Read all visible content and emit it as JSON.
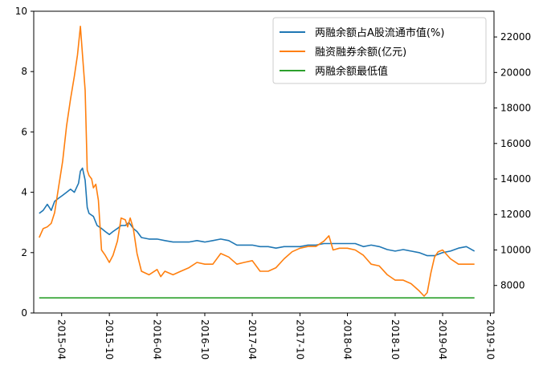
{
  "chart_data": {
    "type": "line",
    "title": "",
    "xlabel": "",
    "ylabel_left": "",
    "ylabel_right": "",
    "x_ticks": [
      "2015-04",
      "2015-10",
      "2016-04",
      "2016-10",
      "2017-04",
      "2017-10",
      "2018-04",
      "2018-10",
      "2019-04",
      "2019-10"
    ],
    "y_left_ticks": [
      "0",
      "2",
      "4",
      "6",
      "8",
      "10"
    ],
    "y_right_ticks": [
      "8000",
      "10000",
      "12000",
      "14000",
      "16000",
      "18000",
      "20000",
      "22000"
    ],
    "ylim_left": [
      0,
      10
    ],
    "ylim_right": [
      6450,
      23450
    ],
    "xlim": [
      "2014-12-15",
      "2019-10-15"
    ],
    "grid": false,
    "legend_position": "upper right",
    "series": [
      {
        "name": "两融余额占A股流通市值(%)",
        "axis": "left",
        "color": "#1f77b4",
        "x": [
          "2015-01-05",
          "2015-01-20",
          "2015-02-05",
          "2015-02-20",
          "2015-03-05",
          "2015-03-20",
          "2015-04-05",
          "2015-04-20",
          "2015-05-05",
          "2015-05-20",
          "2015-06-05",
          "2015-06-12",
          "2015-06-20",
          "2015-06-30",
          "2015-07-08",
          "2015-07-15",
          "2015-08-01",
          "2015-08-15",
          "2015-09-01",
          "2015-09-15",
          "2015-10-01",
          "2015-10-15",
          "2015-11-01",
          "2015-11-15",
          "2015-12-01",
          "2015-12-15",
          "2016-01-01",
          "2016-01-15",
          "2016-02-01",
          "2016-03-01",
          "2016-04-01",
          "2016-05-01",
          "2016-06-01",
          "2016-07-01",
          "2016-08-01",
          "2016-09-01",
          "2016-10-01",
          "2016-11-01",
          "2016-12-01",
          "2017-01-01",
          "2017-02-01",
          "2017-03-01",
          "2017-04-01",
          "2017-05-01",
          "2017-06-01",
          "2017-07-01",
          "2017-08-01",
          "2017-09-01",
          "2017-10-01",
          "2017-11-01",
          "2017-12-01",
          "2018-01-01",
          "2018-02-01",
          "2018-03-01",
          "2018-04-01",
          "2018-05-01",
          "2018-06-01",
          "2018-07-01",
          "2018-08-01",
          "2018-09-01",
          "2018-10-01",
          "2018-11-01",
          "2018-12-01",
          "2019-01-01",
          "2019-02-01",
          "2019-03-01",
          "2019-04-01",
          "2019-05-01",
          "2019-06-01",
          "2019-07-01",
          "2019-08-01"
        ],
        "values": [
          3.3,
          3.4,
          3.6,
          3.4,
          3.7,
          3.8,
          3.9,
          4.0,
          4.1,
          4.0,
          4.3,
          4.7,
          4.8,
          4.4,
          3.5,
          3.3,
          3.2,
          2.9,
          2.8,
          2.7,
          2.6,
          2.7,
          2.8,
          2.9,
          2.9,
          3.0,
          2.8,
          2.7,
          2.5,
          2.45,
          2.45,
          2.4,
          2.35,
          2.35,
          2.35,
          2.4,
          2.35,
          2.4,
          2.45,
          2.4,
          2.25,
          2.25,
          2.25,
          2.2,
          2.2,
          2.15,
          2.2,
          2.2,
          2.2,
          2.25,
          2.25,
          2.3,
          2.3,
          2.3,
          2.3,
          2.3,
          2.2,
          2.25,
          2.2,
          2.1,
          2.05,
          2.1,
          2.05,
          2.0,
          1.9,
          1.9,
          2.0,
          2.05,
          2.15,
          2.2,
          2.05
        ]
      },
      {
        "name": "融资融券余额(亿元)",
        "axis": "right",
        "color": "#ff7f0e",
        "x": [
          "2015-01-05",
          "2015-01-20",
          "2015-02-05",
          "2015-02-20",
          "2015-03-05",
          "2015-03-20",
          "2015-04-05",
          "2015-04-20",
          "2015-05-05",
          "2015-05-20",
          "2015-06-01",
          "2015-06-12",
          "2015-06-20",
          "2015-06-30",
          "2015-07-08",
          "2015-07-15",
          "2015-07-25",
          "2015-08-01",
          "2015-08-10",
          "2015-08-20",
          "2015-09-01",
          "2015-09-15",
          "2015-10-01",
          "2015-10-15",
          "2015-11-01",
          "2015-11-15",
          "2015-12-01",
          "2015-12-10",
          "2015-12-20",
          "2016-01-01",
          "2016-01-15",
          "2016-02-01",
          "2016-03-01",
          "2016-04-01",
          "2016-04-15",
          "2016-05-01",
          "2016-06-01",
          "2016-07-01",
          "2016-08-01",
          "2016-09-01",
          "2016-10-01",
          "2016-11-01",
          "2016-12-01",
          "2017-01-01",
          "2017-02-01",
          "2017-03-01",
          "2017-04-01",
          "2017-05-01",
          "2017-06-01",
          "2017-07-01",
          "2017-08-01",
          "2017-09-01",
          "2017-10-01",
          "2017-11-01",
          "2017-12-01",
          "2018-01-01",
          "2018-01-20",
          "2018-02-05",
          "2018-03-01",
          "2018-04-01",
          "2018-05-01",
          "2018-06-01",
          "2018-07-01",
          "2018-08-01",
          "2018-09-01",
          "2018-10-01",
          "2018-11-01",
          "2018-12-01",
          "2019-01-01",
          "2019-01-20",
          "2019-02-01",
          "2019-02-15",
          "2019-03-01",
          "2019-03-15",
          "2019-04-01",
          "2019-05-01",
          "2019-06-01",
          "2019-07-01",
          "2019-08-01"
        ],
        "values": [
          10700,
          11200,
          11300,
          11500,
          12100,
          13500,
          15000,
          17000,
          18500,
          19800,
          21000,
          22600,
          21000,
          19000,
          14500,
          14200,
          14000,
          13500,
          13700,
          12800,
          10000,
          9700,
          9300,
          9700,
          10500,
          11800,
          11700,
          11300,
          11800,
          11200,
          9800,
          8800,
          8600,
          8900,
          8500,
          8800,
          8600,
          8800,
          9000,
          9300,
          9200,
          9200,
          9800,
          9600,
          9200,
          9300,
          9400,
          8800,
          8800,
          9000,
          9500,
          9900,
          10100,
          10200,
          10200,
          10500,
          10800,
          10000,
          10100,
          10100,
          10000,
          9700,
          9200,
          9100,
          8600,
          8300,
          8300,
          8100,
          7700,
          7400,
          7600,
          8700,
          9600,
          9900,
          10000,
          9500,
          9200,
          9200,
          9200
        ]
      },
      {
        "name": "两融余额最低值",
        "axis": "right",
        "color": "#2ca02c",
        "x": [
          "2015-01-05",
          "2019-08-01"
        ],
        "values": [
          7300,
          7300
        ]
      }
    ]
  }
}
